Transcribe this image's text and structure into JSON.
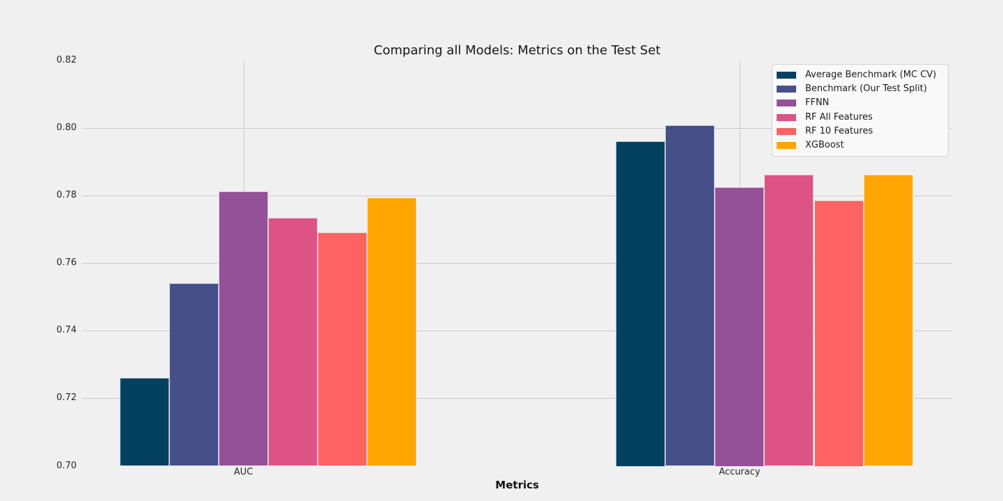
{
  "colors": {
    "background": "#f0f0f0",
    "grid": "#cbcbcb",
    "tick_text": "#262626",
    "legend_background": "#f9f9f9",
    "legend_border": "#d2d2d2"
  },
  "chart_data": {
    "type": "bar",
    "title": "Comparing all Models: Metrics on the Test Set",
    "xlabel": "Metrics",
    "ylabel": "",
    "categories": [
      "AUC",
      "Accuracy"
    ],
    "series": [
      {
        "name": "Average Benchmark (MC CV)",
        "color": "#04405f",
        "values": [
          0.726,
          0.7961
        ]
      },
      {
        "name": "Benchmark (Our Test Split)",
        "color": "#464f88",
        "values": [
          0.7541,
          0.8008
        ]
      },
      {
        "name": "FFNN",
        "color": "#955197",
        "values": [
          0.7813,
          0.7825
        ]
      },
      {
        "name": "RF All Features",
        "color": "#dc5384",
        "values": [
          0.7734,
          0.7862
        ]
      },
      {
        "name": "RF 10 Features",
        "color": "#fe6263",
        "values": [
          0.7692,
          0.7786
        ]
      },
      {
        "name": "XGBoost",
        "color": "#ffa502",
        "values": [
          0.7795,
          0.7862
        ]
      }
    ],
    "ylim": [
      0.7,
      0.82
    ],
    "yticks": [
      0.7,
      0.72,
      0.74,
      0.76,
      0.78,
      0.8,
      0.82
    ],
    "ytick_labels": [
      "0.70",
      "0.72",
      "0.74",
      "0.76",
      "0.78",
      "0.80",
      "0.82"
    ],
    "grid": true,
    "legend_position": "upper right"
  }
}
